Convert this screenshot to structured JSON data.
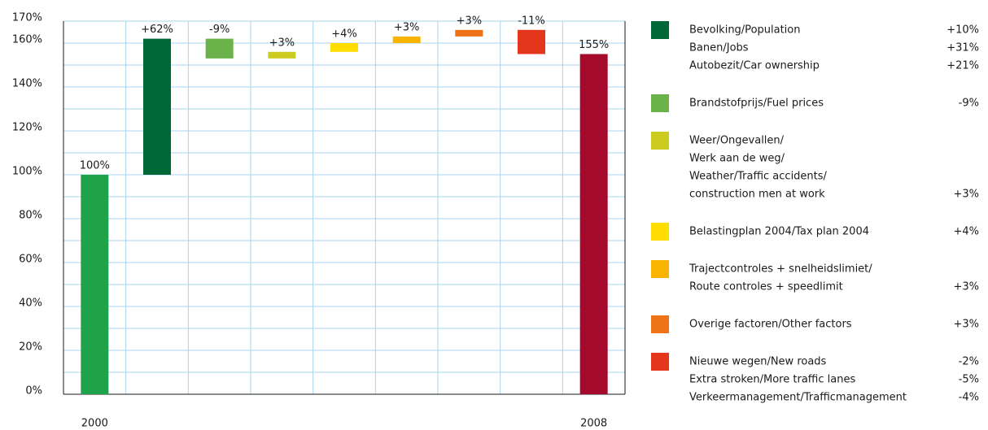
{
  "chart_data": {
    "type": "waterfall",
    "categories": [
      "2000",
      null,
      null,
      null,
      null,
      null,
      null,
      null,
      "2008"
    ],
    "values": [
      100,
      62,
      -9,
      3,
      4,
      3,
      3,
      -11,
      155
    ],
    "value_labels": [
      "100%",
      "+62%",
      "-9%",
      "+3%",
      "+4%",
      "+3%",
      "+3%",
      "-11%",
      "155%"
    ],
    "colors": [
      "#1ea34b",
      "#006837",
      "#6cb24a",
      "#cbcb20",
      "#ffdd00",
      "#f8b400",
      "#ee7317",
      "#e3361b",
      "#a5092b"
    ],
    "ylim": [
      0,
      170
    ],
    "yticks": [
      {
        "value": 0,
        "label": "0%"
      },
      {
        "value": 20,
        "label": "20%"
      },
      {
        "value": 40,
        "label": "40%"
      },
      {
        "value": 60,
        "label": "60%"
      },
      {
        "value": 80,
        "label": "80%"
      },
      {
        "value": 100,
        "label": "100%"
      },
      {
        "value": 120,
        "label": "120%"
      },
      {
        "value": 140,
        "label": "140%"
      },
      {
        "value": 160,
        "label": "160%"
      },
      {
        "value": 170,
        "label": "170%"
      }
    ],
    "ygrid": [
      10,
      20,
      30,
      40,
      50,
      60,
      70,
      80,
      90,
      100,
      110,
      120,
      130,
      140,
      150,
      160,
      170
    ],
    "grid": true,
    "legend": [
      {
        "color": "#006837",
        "lines": [
          {
            "text": "Bevolking/Population",
            "value": "+10%"
          },
          {
            "text": "Banen/Jobs",
            "value": "+31%"
          },
          {
            "text": "Autobezit/Car ownership",
            "value": "+21%"
          }
        ]
      },
      {
        "color": "#6cb24a",
        "lines": [
          {
            "text": "Brandstofprijs/Fuel prices",
            "value": "-9%"
          }
        ]
      },
      {
        "color": "#cbcb20",
        "lines": [
          {
            "text": "Weer/Ongevallen/"
          },
          {
            "text": "Werk aan de weg/"
          },
          {
            "text": "Weather/Traffic accidents/"
          },
          {
            "text": "construction men at work",
            "value": "+3%"
          }
        ]
      },
      {
        "color": "#ffdd00",
        "lines": [
          {
            "text": "Belastingplan 2004/Tax plan 2004",
            "value": "+4%"
          }
        ]
      },
      {
        "color": "#f8b400",
        "lines": [
          {
            "text": "Trajectcontroles + snelheidslimiet/"
          },
          {
            "text": "Route controles + speedlimit",
            "value": "+3%"
          }
        ]
      },
      {
        "color": "#ee7317",
        "lines": [
          {
            "text": "Overige factoren/Other factors",
            "value": "+3%"
          }
        ]
      },
      {
        "color": "#e3361b",
        "lines": [
          {
            "text": "Nieuwe wegen/New roads",
            "value": "-2%"
          },
          {
            "text": "Extra stroken/More traffic lanes",
            "value": "-5%"
          },
          {
            "text": "Verkeermanagement/Trafficmanagement",
            "value": "-4%"
          }
        ]
      }
    ]
  }
}
